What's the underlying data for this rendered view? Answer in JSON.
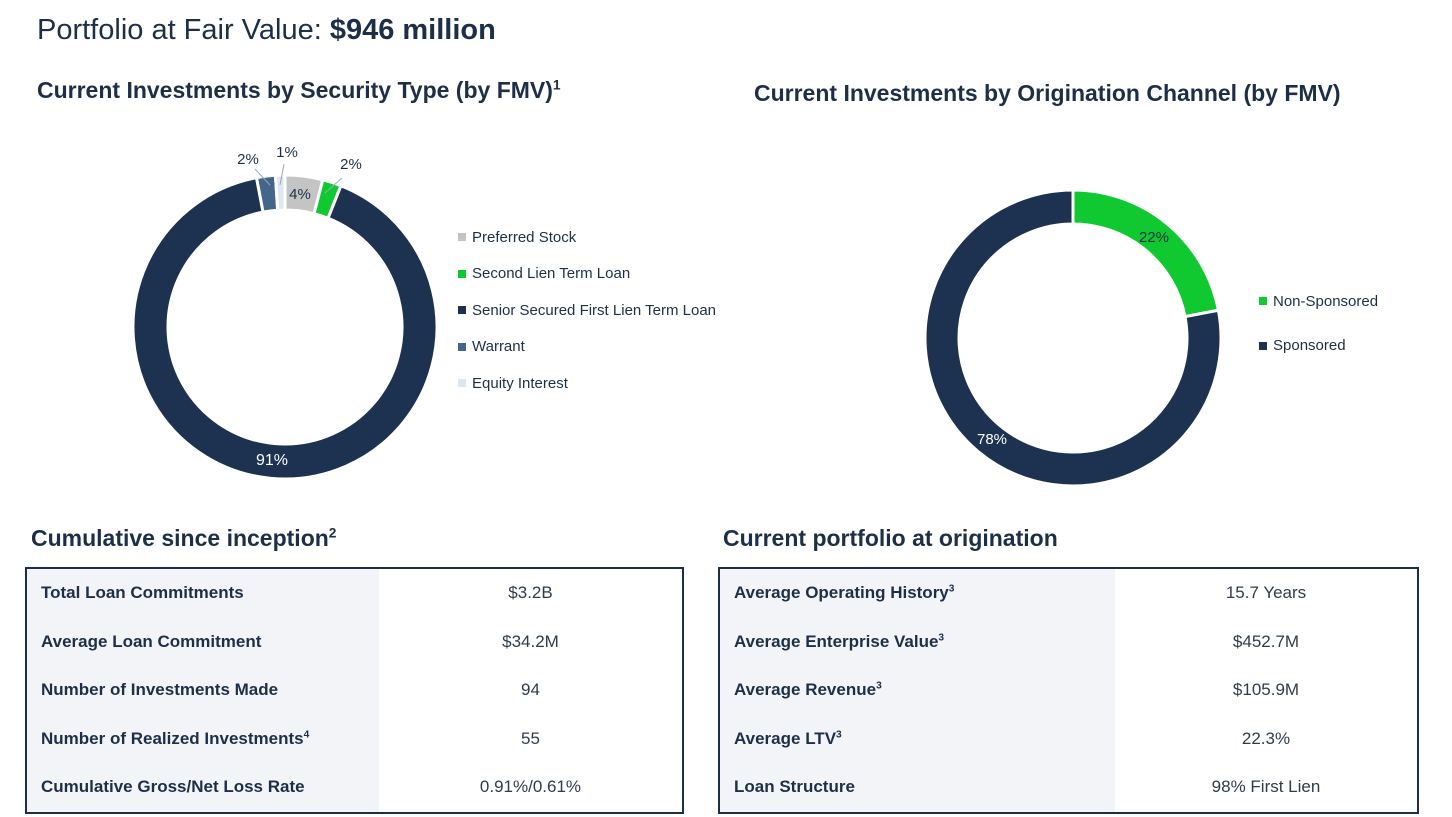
{
  "title": {
    "prefix": "Portfolio at Fair Value: ",
    "value": "$946 million"
  },
  "colors": {
    "navy": "#1d3150",
    "green": "#10c930",
    "gray": "#c4c4c4",
    "steel": "#44668a",
    "pale": "#dde7f2"
  },
  "chart_data": [
    {
      "type": "donut",
      "title": "Current Investments by Security Type (by FMV)",
      "title_footnote": "1",
      "slices": [
        {
          "name": "Preferred Stock",
          "value": 4,
          "label": "4%",
          "color": "#c4c4c4"
        },
        {
          "name": "Second Lien Term Loan",
          "value": 2,
          "label": "2%",
          "color": "#10c930"
        },
        {
          "name": "Senior Secured First Lien Term Loan",
          "value": 91,
          "label": "91%",
          "color": "#1d3150"
        },
        {
          "name": "Warrant",
          "value": 2,
          "label": "2%",
          "color": "#44668a"
        },
        {
          "name": "Equity Interest",
          "value": 1,
          "label": "1%",
          "color": "#dde7f2"
        }
      ],
      "legend_position": "right"
    },
    {
      "type": "donut",
      "title": "Current Investments by Origination Channel (by FMV)",
      "slices": [
        {
          "name": "Non-Sponsored",
          "value": 22,
          "label": "22%",
          "color": "#10c930"
        },
        {
          "name": "Sponsored",
          "value": 78,
          "label": "78%",
          "color": "#1d3150"
        }
      ],
      "legend_position": "right"
    }
  ],
  "cumulative": {
    "title": "Cumulative since inception",
    "footnote": "2",
    "rows": [
      {
        "label": "Total Loan Commitments",
        "sup": "",
        "value": "$3.2B"
      },
      {
        "label": "Average Loan Commitment",
        "sup": "",
        "value": "$34.2M"
      },
      {
        "label": "Number of Investments Made",
        "sup": "",
        "value": "94"
      },
      {
        "label": "Number of Realized Investments",
        "sup": "4",
        "value": "55"
      },
      {
        "label": "Cumulative Gross/Net Loss Rate",
        "sup": "",
        "value": "0.91%/0.61%"
      }
    ]
  },
  "current": {
    "title": "Current portfolio at origination",
    "rows": [
      {
        "label": "Average Operating History",
        "sup": "3",
        "value": "15.7 Years"
      },
      {
        "label": "Average Enterprise Value",
        "sup": "3",
        "value": "$452.7M"
      },
      {
        "label": "Average Revenue",
        "sup": "3",
        "value": "$105.9M"
      },
      {
        "label": "Average LTV",
        "sup": "3",
        "value": "22.3%"
      },
      {
        "label": "Loan Structure",
        "sup": "",
        "value": "98% First Lien"
      }
    ]
  }
}
